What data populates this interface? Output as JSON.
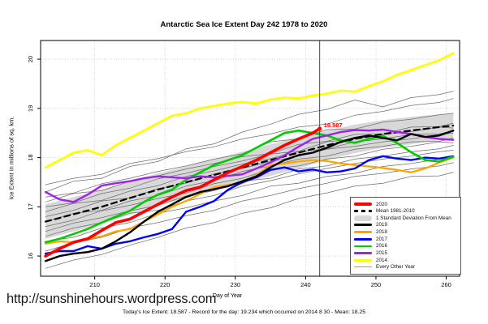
{
  "title": "Antarctic Sea Ice Extent Day 242 1978 to 2020",
  "footer": {
    "url": "http://sunshinehours.wordpress.com",
    "caption": "Today's Ice Extent: 18.587  - Record for the day: 19.234 which occurred on 2014 8 30  - Mean: 18.25"
  },
  "legend": {
    "entries": [
      {
        "label": "2020",
        "color": "#FF0000",
        "style": "line",
        "thickness": 4
      },
      {
        "label": "Mean 1981-2010",
        "color": "#000000",
        "style": "dashed",
        "thickness": 2.5
      },
      {
        "label": "1 Standard Deviation From Mean",
        "color": "#D8D8D8",
        "style": "band",
        "thickness": 7
      },
      {
        "label": "2019",
        "color": "#000000",
        "style": "line",
        "thickness": 3
      },
      {
        "label": "2018",
        "color": "#FFA500",
        "style": "line",
        "thickness": 2.5
      },
      {
        "label": "2017",
        "color": "#0000FF",
        "style": "line",
        "thickness": 2.5
      },
      {
        "label": "2016",
        "color": "#00CC00",
        "style": "line",
        "thickness": 2.5
      },
      {
        "label": "2015",
        "color": "#A020F0",
        "style": "line",
        "thickness": 2.5
      },
      {
        "label": "2014",
        "color": "#FFFF00",
        "style": "line",
        "thickness": 2.5
      },
      {
        "label": "Every Other Year",
        "color": "#999999",
        "style": "line",
        "thickness": 1
      }
    ]
  },
  "chart_data": {
    "type": "line",
    "title": "Antarctic Sea Ice Extent Day 242 1978 to 2020",
    "xlabel": "Day of Year",
    "ylabel": "Ice Extent in millions of sq. km.",
    "xlim": [
      202.3,
      261.9
    ],
    "ylim": [
      15.59,
      20.38
    ],
    "xticks": [
      210,
      220,
      230,
      240,
      250,
      260
    ],
    "yticks": [
      16,
      17,
      18,
      19,
      20
    ],
    "grid": "dotted",
    "legend_position": "bottom-right",
    "vline_day": 242,
    "annotation": {
      "text": "18.587",
      "day": 242,
      "value": 18.587,
      "color": "#FF0000"
    },
    "days2": [
      203,
      205,
      207,
      209,
      211,
      213,
      215,
      217,
      219,
      221,
      223,
      225,
      227,
      229,
      231,
      233,
      235,
      237,
      239,
      241,
      243,
      245,
      247,
      249,
      251,
      253,
      255,
      257,
      259,
      261
    ],
    "band": {
      "name": "1 Standard Deviation From Mean",
      "color": "#D8D8D8",
      "days": [
        203,
        207,
        211,
        215,
        219,
        223,
        227,
        231,
        235,
        239,
        243,
        247,
        251,
        255,
        259,
        261
      ],
      "upper": [
        17.05,
        17.2,
        17.35,
        17.52,
        17.68,
        17.82,
        17.97,
        18.12,
        18.27,
        18.42,
        18.55,
        18.67,
        18.76,
        18.83,
        18.88,
        18.9
      ],
      "lower": [
        16.35,
        16.5,
        16.65,
        16.84,
        17.02,
        17.18,
        17.33,
        17.48,
        17.63,
        17.78,
        17.95,
        18.09,
        18.2,
        18.27,
        18.36,
        18.4
      ]
    },
    "mean": {
      "name": "Mean 1981-2010",
      "color": "#000000",
      "days": [
        203,
        207,
        211,
        215,
        219,
        223,
        227,
        231,
        235,
        239,
        243,
        247,
        251,
        255,
        259,
        261
      ],
      "values": [
        16.7,
        16.85,
        17.0,
        17.18,
        17.35,
        17.5,
        17.65,
        17.8,
        17.95,
        18.1,
        18.25,
        18.38,
        18.48,
        18.55,
        18.62,
        18.65
      ]
    },
    "series": [
      {
        "name": "2014",
        "color": "#FFFF00",
        "width": 2.8,
        "values": [
          17.8,
          17.95,
          18.1,
          18.15,
          18.05,
          18.25,
          18.4,
          18.55,
          18.7,
          18.85,
          18.9,
          19.0,
          19.05,
          19.1,
          19.13,
          19.1,
          19.18,
          19.22,
          19.2,
          19.26,
          19.3,
          19.36,
          19.34,
          19.45,
          19.55,
          19.68,
          19.78,
          19.88,
          19.98,
          20.12
        ]
      },
      {
        "name": "2018",
        "color": "#FFA500",
        "width": 2.3,
        "values": [
          16.25,
          16.3,
          16.28,
          16.35,
          16.4,
          16.5,
          16.55,
          16.7,
          16.85,
          17.0,
          17.12,
          17.26,
          17.4,
          17.45,
          17.48,
          17.65,
          17.85,
          17.88,
          17.92,
          17.95,
          17.93,
          17.88,
          17.85,
          17.82,
          17.79,
          17.75,
          17.7,
          17.78,
          17.9,
          18.0
        ]
      },
      {
        "name": "2017",
        "color": "#0000FF",
        "width": 2.4,
        "values": [
          16.05,
          16.1,
          16.1,
          16.2,
          16.15,
          16.25,
          16.3,
          16.38,
          16.45,
          16.55,
          16.9,
          17.0,
          17.12,
          17.35,
          17.5,
          17.6,
          17.75,
          17.8,
          17.72,
          17.76,
          17.7,
          17.72,
          17.78,
          17.95,
          18.03,
          17.98,
          17.95,
          18.0,
          17.98,
          18.03
        ]
      },
      {
        "name": "2016",
        "color": "#00CC00",
        "width": 2.6,
        "values": [
          16.28,
          16.35,
          16.45,
          16.55,
          16.68,
          16.8,
          16.92,
          17.1,
          17.25,
          17.35,
          17.55,
          17.7,
          17.85,
          17.95,
          18.05,
          18.2,
          18.35,
          18.5,
          18.55,
          18.5,
          18.45,
          18.35,
          18.3,
          18.38,
          18.44,
          18.3,
          18.11,
          17.95,
          17.92,
          18.02
        ]
      },
      {
        "name": "2015",
        "color": "#A020F0",
        "width": 2.4,
        "values": [
          17.3,
          17.15,
          17.1,
          17.25,
          17.43,
          17.48,
          17.52,
          17.58,
          17.62,
          17.6,
          17.58,
          17.62,
          17.6,
          17.63,
          17.66,
          17.78,
          17.9,
          18.05,
          18.22,
          18.38,
          18.45,
          18.52,
          18.56,
          18.55,
          18.57,
          18.52,
          18.48,
          18.42,
          18.38,
          18.36
        ]
      },
      {
        "name": "2019",
        "color": "#000000",
        "width": 2.4,
        "values": [
          15.9,
          16.0,
          16.05,
          16.08,
          16.15,
          16.3,
          16.48,
          16.7,
          16.9,
          17.05,
          17.2,
          17.3,
          17.36,
          17.42,
          17.52,
          17.62,
          17.8,
          17.95,
          18.05,
          18.1,
          18.2,
          18.32,
          18.4,
          18.45,
          18.4,
          18.35,
          18.48,
          18.42,
          18.45,
          18.55
        ]
      },
      {
        "name": "2020",
        "color": "#FF0000",
        "width": 3.6,
        "days": [
          203,
          205,
          207,
          209,
          211,
          213,
          215,
          217,
          219,
          221,
          223,
          225,
          227,
          229,
          231,
          233,
          235,
          237,
          239,
          241,
          242
        ],
        "values": [
          16.0,
          16.15,
          16.28,
          16.35,
          16.52,
          16.68,
          16.75,
          16.9,
          17.05,
          17.2,
          17.33,
          17.4,
          17.55,
          17.7,
          17.82,
          17.95,
          18.1,
          18.25,
          18.38,
          18.5,
          18.587
        ]
      }
    ],
    "every_other_year": {
      "name": "Every Other Year",
      "color": "#6e6e6e",
      "days": [
        203,
        207,
        211,
        215,
        219,
        223,
        227,
        231,
        235,
        239,
        243,
        247,
        251,
        255,
        259,
        261
      ],
      "lines": [
        [
          17.45,
          17.58,
          17.66,
          17.88,
          17.98,
          18.12,
          18.22,
          18.38,
          18.48,
          18.62,
          18.68,
          18.86,
          18.94,
          19.06,
          19.12,
          19.2
        ],
        [
          17.3,
          17.52,
          17.58,
          17.82,
          17.92,
          18.18,
          18.28,
          18.52,
          18.68,
          18.88,
          18.98,
          19.17,
          19.03,
          19.22,
          19.28,
          19.35
        ],
        [
          17.2,
          17.28,
          17.47,
          17.58,
          17.72,
          17.83,
          17.97,
          18.08,
          18.32,
          18.38,
          18.57,
          18.58,
          18.72,
          18.78,
          18.87,
          18.9
        ],
        [
          17.1,
          17.27,
          17.33,
          17.52,
          17.63,
          17.77,
          17.88,
          18.02,
          18.08,
          18.27,
          18.33,
          18.47,
          18.48,
          18.62,
          18.63,
          18.7
        ],
        [
          17.0,
          17.08,
          17.27,
          17.38,
          17.57,
          17.68,
          17.82,
          17.93,
          18.07,
          18.13,
          18.32,
          18.38,
          18.47,
          18.53,
          18.62,
          18.6
        ],
        [
          16.9,
          17.07,
          17.13,
          17.32,
          17.43,
          17.62,
          17.73,
          17.87,
          17.98,
          18.12,
          18.18,
          18.32,
          18.38,
          18.47,
          18.48,
          18.55
        ],
        [
          16.8,
          16.93,
          17.12,
          17.18,
          17.37,
          17.48,
          17.67,
          17.78,
          17.92,
          18.03,
          18.17,
          18.23,
          18.32,
          18.38,
          18.47,
          18.5
        ],
        [
          16.7,
          16.87,
          16.93,
          17.12,
          17.23,
          17.42,
          17.53,
          17.72,
          17.83,
          17.97,
          18.03,
          18.17,
          18.23,
          18.32,
          18.33,
          18.4
        ],
        [
          16.6,
          16.73,
          16.92,
          17.03,
          17.17,
          17.28,
          17.47,
          17.58,
          17.77,
          17.83,
          17.97,
          18.03,
          18.17,
          18.23,
          18.32,
          18.3
        ],
        [
          16.5,
          16.67,
          16.78,
          16.92,
          17.03,
          17.22,
          17.33,
          17.52,
          17.58,
          17.77,
          17.83,
          17.97,
          18.03,
          18.12,
          18.18,
          18.25
        ],
        [
          16.4,
          16.57,
          16.68,
          16.87,
          16.93,
          17.12,
          17.23,
          17.42,
          17.53,
          17.67,
          17.78,
          17.88,
          17.97,
          18.03,
          18.12,
          18.15
        ],
        [
          16.3,
          16.38,
          16.57,
          16.68,
          16.87,
          16.98,
          17.12,
          17.23,
          17.42,
          17.48,
          17.62,
          17.68,
          17.82,
          17.88,
          17.97,
          18.0
        ],
        [
          16.1,
          16.27,
          16.38,
          16.57,
          16.68,
          16.82,
          16.93,
          17.12,
          17.23,
          17.37,
          17.48,
          17.62,
          17.68,
          17.77,
          17.83,
          17.9
        ],
        [
          15.75,
          15.92,
          16.03,
          16.22,
          16.38,
          16.57,
          16.68,
          16.87,
          16.98,
          17.17,
          17.28,
          17.42,
          17.48,
          17.62,
          17.63,
          17.7
        ]
      ]
    }
  }
}
